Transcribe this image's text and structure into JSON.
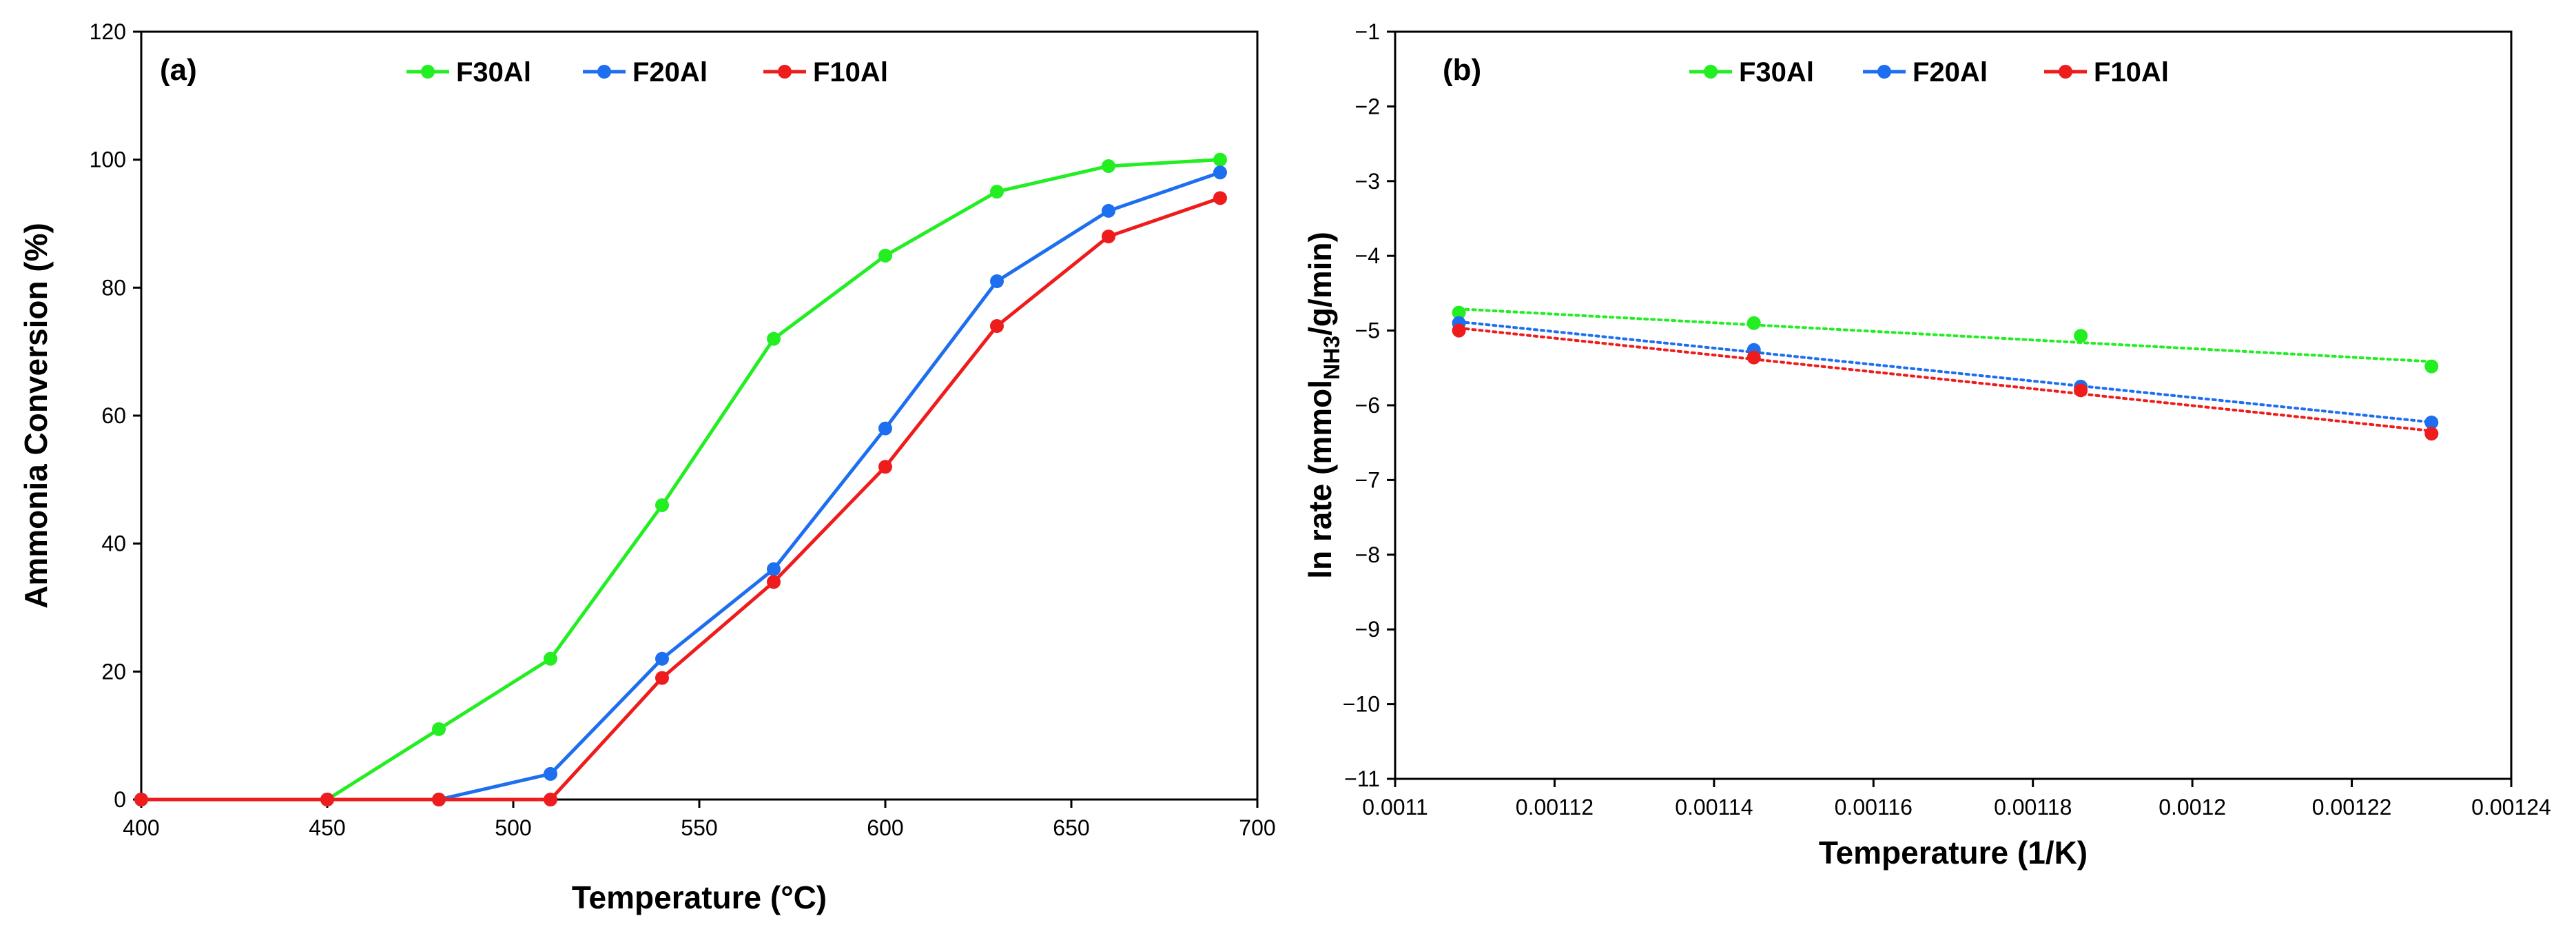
{
  "colors": {
    "F30Al": "#22ee22",
    "F20Al": "#1e6ef0",
    "F10Al": "#ee1c1c"
  },
  "chart_data": [
    {
      "type": "line",
      "panel": "(a)",
      "title": "",
      "xlabel": "Temperature (°C)",
      "ylabel": "Ammonia Conversion (%)",
      "xlim": [
        400,
        700
      ],
      "ylim": [
        0,
        120
      ],
      "xticks": [
        "400",
        "450",
        "500",
        "550",
        "600",
        "650",
        "700"
      ],
      "yticks": [
        "0",
        "20",
        "40",
        "60",
        "80",
        "100",
        "120"
      ],
      "legend": "top-center",
      "series": [
        {
          "name": "F30Al",
          "x": [
            400,
            450,
            480,
            510,
            540,
            570,
            600,
            630,
            660,
            690
          ],
          "y": [
            0,
            0,
            11,
            22,
            46,
            72,
            85,
            95,
            99,
            100
          ]
        },
        {
          "name": "F20Al",
          "x": [
            400,
            450,
            480,
            510,
            540,
            570,
            600,
            630,
            660,
            690
          ],
          "y": [
            0,
            0,
            0,
            4,
            22,
            36,
            58,
            81,
            92,
            98
          ]
        },
        {
          "name": "F10Al",
          "x": [
            400,
            450,
            480,
            510,
            540,
            570,
            600,
            630,
            660,
            690
          ],
          "y": [
            0,
            0,
            0,
            0,
            19,
            34,
            52,
            74,
            88,
            94
          ]
        }
      ]
    },
    {
      "type": "scatter",
      "panel": "(b)",
      "title": "",
      "xlabel": "Temperature (1/K)",
      "ylabel_main": "ln rate (mmol",
      "ylabel_sub": "NH3",
      "ylabel_tail": "/g/min)",
      "xlim": [
        0.0011,
        0.00124
      ],
      "ylim": [
        -11,
        -1
      ],
      "xticks": [
        "0.0011",
        "0.00112",
        "0.00114",
        "0.00116",
        "0.00118",
        "0.0012",
        "0.00122",
        "0.00124"
      ],
      "yticks": [
        "-11",
        "-10",
        "-9",
        "-8",
        "-7",
        "-6",
        "-5",
        "-4",
        "-3",
        "-2",
        "-1"
      ],
      "legend": "top-center",
      "trendlines": "dotted linear",
      "series": [
        {
          "name": "F30Al",
          "x": [
            0.001108,
            0.001145,
            0.001186,
            0.00123
          ],
          "y": [
            -4.76,
            -4.9,
            -5.07,
            -5.48
          ]
        },
        {
          "name": "F20Al",
          "x": [
            0.001108,
            0.001145,
            0.001186,
            0.00123
          ],
          "y": [
            -4.9,
            -5.26,
            -5.75,
            -6.23
          ]
        },
        {
          "name": "F10Al",
          "x": [
            0.001108,
            0.001145,
            0.001186,
            0.00123
          ],
          "y": [
            -5.0,
            -5.36,
            -5.8,
            -6.38
          ]
        }
      ]
    }
  ]
}
